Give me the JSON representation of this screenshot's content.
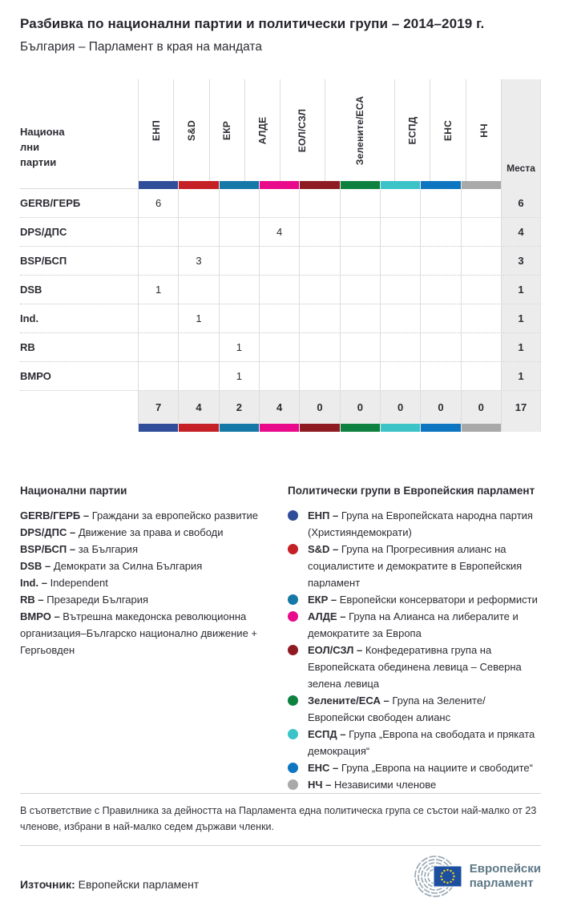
{
  "header": {
    "title": "Разбивка по национални партии и политически групи – 2014–2019 г.",
    "subtitle": "България – Парламент в края на мандата"
  },
  "table": {
    "corner_label": "Национа\nлни\nпартии",
    "seats_label": "Места",
    "groups": [
      {
        "code": "ЕНП",
        "color": "#2F4D99"
      },
      {
        "code": "S&D",
        "color": "#C42026"
      },
      {
        "code": "ЕКР",
        "color": "#1578A6"
      },
      {
        "code": "АЛДЕ",
        "color": "#E90A8C"
      },
      {
        "code": "ЕОЛ/СЗЛ",
        "color": "#8E1B22"
      },
      {
        "code": "Зелените/ЕСА",
        "color": "#0E8140"
      },
      {
        "code": "ЕСПД",
        "color": "#3CC3C8"
      },
      {
        "code": "ЕНС",
        "color": "#0E76C0"
      },
      {
        "code": "НЧ",
        "color": "#A9A9A9"
      }
    ],
    "rows": [
      {
        "party": "GERB/ГЕРБ",
        "values": [
          "6",
          "",
          "",
          "",
          "",
          "",
          "",
          "",
          ""
        ],
        "seats": "6"
      },
      {
        "party": "DPS/ДПС",
        "values": [
          "",
          "",
          "",
          "4",
          "",
          "",
          "",
          "",
          ""
        ],
        "seats": "4"
      },
      {
        "party": "BSP/БСП",
        "values": [
          "",
          "3",
          "",
          "",
          "",
          "",
          "",
          "",
          ""
        ],
        "seats": "3"
      },
      {
        "party": "DSB",
        "values": [
          "1",
          "",
          "",
          "",
          "",
          "",
          "",
          "",
          ""
        ],
        "seats": "1"
      },
      {
        "party": "Ind.",
        "values": [
          "",
          "1",
          "",
          "",
          "",
          "",
          "",
          "",
          ""
        ],
        "seats": "1"
      },
      {
        "party": "RB",
        "values": [
          "",
          "",
          "1",
          "",
          "",
          "",
          "",
          "",
          ""
        ],
        "seats": "1"
      },
      {
        "party": "ВМРО",
        "values": [
          "",
          "",
          "1",
          "",
          "",
          "",
          "",
          "",
          ""
        ],
        "seats": "1"
      }
    ],
    "totals": {
      "values": [
        "7",
        "4",
        "2",
        "4",
        "0",
        "0",
        "0",
        "0",
        "0"
      ],
      "seats": "17"
    }
  },
  "legend_parties": {
    "heading": "Национални партии",
    "items": [
      {
        "name": "GERB/ГЕРБ –",
        "desc": "Граждани за европейско развитие"
      },
      {
        "name": "DPS/ДПС –",
        "desc": "Движение за права и свободи"
      },
      {
        "name": "BSP/БСП –",
        "desc": "за България"
      },
      {
        "name": "DSB –",
        "desc": "Демократи за Силна България"
      },
      {
        "name": "Ind. –",
        "desc": "Independent"
      },
      {
        "name": "RB –",
        "desc": "Презареди България"
      },
      {
        "name": "ВМРО –",
        "desc": "Вътрешна македонска революционна организация–Българско национално движение + Гергьовден"
      }
    ]
  },
  "legend_groups": {
    "heading": "Политически групи в Европейския парламент",
    "items": [
      {
        "name": "ЕНП –",
        "desc": "Група на Европейската народна партия (Християндемократи)",
        "color": "#2F4D99"
      },
      {
        "name": "S&D –",
        "desc": "Група на Прогресивния алианс на социалистите и демократите в Европейския парламент",
        "color": "#C42026"
      },
      {
        "name": "ЕКР –",
        "desc": "Европейски консерватори и реформисти",
        "color": "#1578A6"
      },
      {
        "name": "АЛДЕ –",
        "desc": "Група на Алианса на либералите и демократите за Европа",
        "color": "#E90A8C"
      },
      {
        "name": "ЕОЛ/СЗЛ –",
        "desc": "Конфедеративна група на Европейската обединена левица – Северна зелена левица",
        "color": "#8E1B22"
      },
      {
        "name": "Зелените/ЕСА –",
        "desc": "Група на Зелените/Европейски свободен алианс",
        "color": "#0E8140"
      },
      {
        "name": "ЕСПД –",
        "desc": "Група „Европа на свободата и пряката демокрация“",
        "color": "#3CC3C8"
      },
      {
        "name": "ЕНС –",
        "desc": "Група „Европа на нациите и свободите“",
        "color": "#0E76C0"
      },
      {
        "name": "НЧ –",
        "desc": "Независими членове",
        "color": "#A9A9A9"
      }
    ]
  },
  "footer": {
    "note": "В съответствие с Правилника за дейността на Парламента една политическа група се състои най-малко от 23 членове, избрани в най-малко седем държави членки.",
    "source_label": "Източник:",
    "source_text": " Европейски парламент",
    "logo_line1": "Европейски",
    "logo_line2": "парламент"
  },
  "chart_data": {
    "type": "table",
    "title": "Разбивка по национални партии и политически групи – 2014–2019 г.",
    "subtitle": "България – Парламент в края на мандата",
    "row_header": "Национални партии",
    "columns": [
      "ЕНП",
      "S&D",
      "ЕКР",
      "АЛДЕ",
      "ЕОЛ/СЗЛ",
      "Зелените/ЕСА",
      "ЕСПД",
      "ЕНС",
      "НЧ",
      "Места"
    ],
    "column_colors": [
      "#2F4D99",
      "#C42026",
      "#1578A6",
      "#E90A8C",
      "#8E1B22",
      "#0E8140",
      "#3CC3C8",
      "#0E76C0",
      "#A9A9A9",
      null
    ],
    "rows": [
      {
        "party": "GERB/ГЕРБ",
        "values": [
          6,
          null,
          null,
          null,
          null,
          null,
          null,
          null,
          null
        ],
        "seats": 6
      },
      {
        "party": "DPS/ДПС",
        "values": [
          null,
          null,
          null,
          4,
          null,
          null,
          null,
          null,
          null
        ],
        "seats": 4
      },
      {
        "party": "BSP/БСП",
        "values": [
          null,
          3,
          null,
          null,
          null,
          null,
          null,
          null,
          null
        ],
        "seats": 3
      },
      {
        "party": "DSB",
        "values": [
          1,
          null,
          null,
          null,
          null,
          null,
          null,
          null,
          null
        ],
        "seats": 1
      },
      {
        "party": "Ind.",
        "values": [
          null,
          1,
          null,
          null,
          null,
          null,
          null,
          null,
          null
        ],
        "seats": 1
      },
      {
        "party": "RB",
        "values": [
          null,
          null,
          1,
          null,
          null,
          null,
          null,
          null,
          null
        ],
        "seats": 1
      },
      {
        "party": "ВМРО",
        "values": [
          null,
          null,
          1,
          null,
          null,
          null,
          null,
          null,
          null
        ],
        "seats": 1
      }
    ],
    "totals": [
      7,
      4,
      2,
      4,
      0,
      0,
      0,
      0,
      0
    ],
    "total_seats": 17
  }
}
